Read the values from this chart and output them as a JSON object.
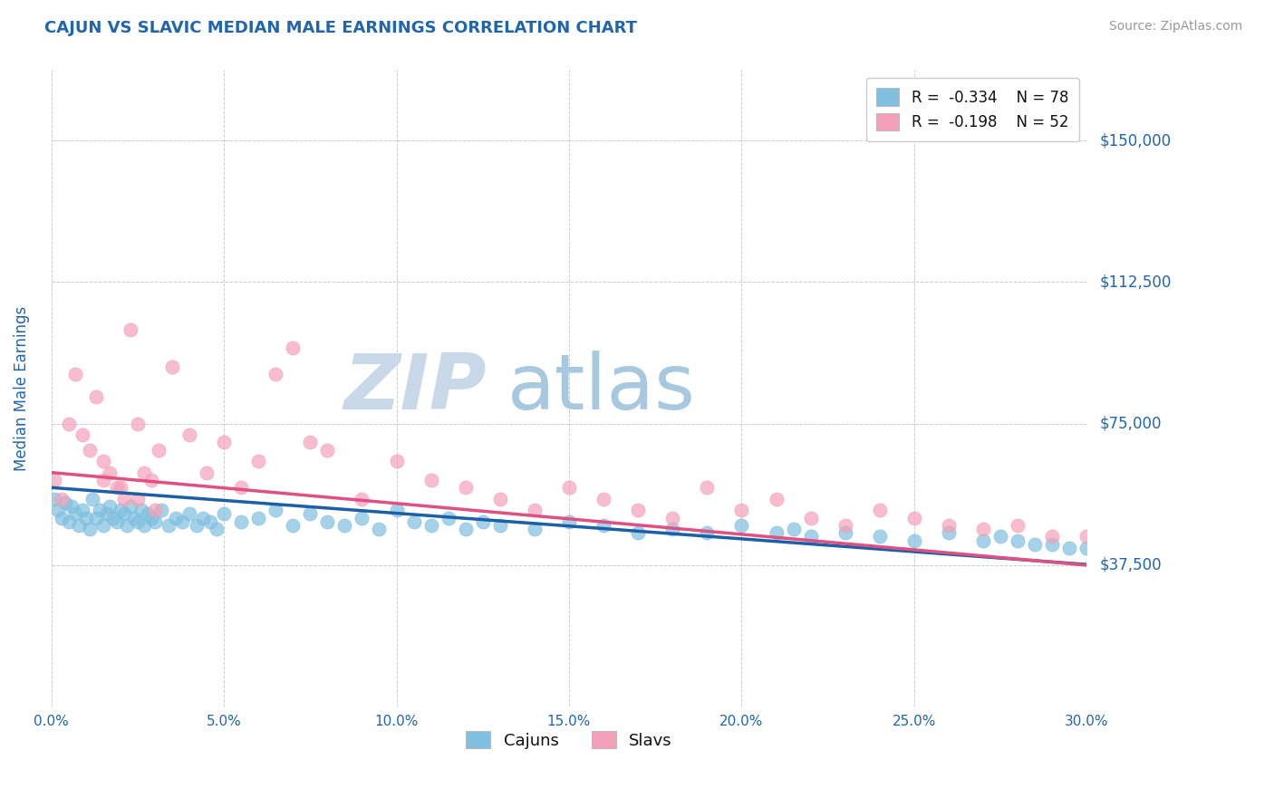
{
  "title": "CAJUN VS SLAVIC MEDIAN MALE EARNINGS CORRELATION CHART",
  "source": "Source: ZipAtlas.com",
  "ylabel": "Median Male Earnings",
  "xmin": 0.0,
  "xmax": 0.3,
  "ymin": 0,
  "ymax": 168750,
  "yticks": [
    0,
    37500,
    75000,
    112500,
    150000
  ],
  "ytick_labels": [
    "",
    "$37,500",
    "$75,000",
    "$112,500",
    "$150,000"
  ],
  "xtick_vals": [
    0.0,
    0.05,
    0.1,
    0.15,
    0.2,
    0.25,
    0.3
  ],
  "xtick_labels": [
    "0.0%",
    "5.0%",
    "10.0%",
    "15.0%",
    "20.0%",
    "25.0%",
    "30.0%"
  ],
  "cajuns_R": -0.334,
  "cajuns_N": 78,
  "slavs_R": -0.198,
  "slavs_N": 52,
  "cajun_color": "#7fbfdf",
  "slav_color": "#f4a0b8",
  "cajun_line_color": "#1a5fa8",
  "slav_line_color": "#e05080",
  "title_color": "#2166ac",
  "axis_label_color": "#2166ac",
  "source_color": "#999999",
  "watermark_ZIP": "ZIP",
  "watermark_atlas": "atlas",
  "watermark_ZIP_color": "#c8d8e8",
  "watermark_atlas_color": "#a8c8e0",
  "background_color": "#ffffff",
  "grid_color": "#cccccc",
  "cajun_line_intercept": 58000,
  "cajun_line_slope": -68000,
  "slav_line_intercept": 62000,
  "slav_line_slope": -82000,
  "cajuns_x": [
    0.001,
    0.002,
    0.003,
    0.004,
    0.005,
    0.006,
    0.007,
    0.008,
    0.009,
    0.01,
    0.011,
    0.012,
    0.013,
    0.014,
    0.015,
    0.016,
    0.017,
    0.018,
    0.019,
    0.02,
    0.021,
    0.022,
    0.023,
    0.024,
    0.025,
    0.026,
    0.027,
    0.028,
    0.029,
    0.03,
    0.032,
    0.034,
    0.036,
    0.038,
    0.04,
    0.042,
    0.044,
    0.046,
    0.048,
    0.05,
    0.055,
    0.06,
    0.065,
    0.07,
    0.075,
    0.08,
    0.085,
    0.09,
    0.095,
    0.1,
    0.105,
    0.11,
    0.115,
    0.12,
    0.125,
    0.13,
    0.14,
    0.15,
    0.16,
    0.17,
    0.18,
    0.19,
    0.2,
    0.21,
    0.215,
    0.22,
    0.23,
    0.24,
    0.25,
    0.26,
    0.27,
    0.275,
    0.28,
    0.285,
    0.29,
    0.295,
    0.3,
    0.305
  ],
  "cajuns_y": [
    55000,
    52000,
    50000,
    54000,
    49000,
    53000,
    51000,
    48000,
    52000,
    50000,
    47000,
    55000,
    50000,
    52000,
    48000,
    51000,
    53000,
    50000,
    49000,
    52000,
    51000,
    48000,
    53000,
    50000,
    49000,
    52000,
    48000,
    51000,
    50000,
    49000,
    52000,
    48000,
    50000,
    49000,
    51000,
    48000,
    50000,
    49000,
    47000,
    51000,
    49000,
    50000,
    52000,
    48000,
    51000,
    49000,
    48000,
    50000,
    47000,
    52000,
    49000,
    48000,
    50000,
    47000,
    49000,
    48000,
    47000,
    49000,
    48000,
    46000,
    47000,
    46000,
    48000,
    46000,
    47000,
    45000,
    46000,
    45000,
    44000,
    46000,
    44000,
    45000,
    44000,
    43000,
    43000,
    42000,
    42000,
    41000
  ],
  "slavs_x": [
    0.001,
    0.003,
    0.005,
    0.007,
    0.009,
    0.011,
    0.013,
    0.015,
    0.017,
    0.019,
    0.021,
    0.023,
    0.025,
    0.027,
    0.029,
    0.031,
    0.035,
    0.04,
    0.045,
    0.05,
    0.055,
    0.06,
    0.065,
    0.07,
    0.075,
    0.08,
    0.09,
    0.1,
    0.11,
    0.12,
    0.13,
    0.14,
    0.15,
    0.16,
    0.17,
    0.18,
    0.19,
    0.2,
    0.21,
    0.22,
    0.23,
    0.24,
    0.25,
    0.26,
    0.27,
    0.28,
    0.29,
    0.3,
    0.015,
    0.02,
    0.025,
    0.03
  ],
  "slavs_y": [
    60000,
    55000,
    75000,
    88000,
    72000,
    68000,
    82000,
    65000,
    62000,
    58000,
    55000,
    100000,
    75000,
    62000,
    60000,
    68000,
    90000,
    72000,
    62000,
    70000,
    58000,
    65000,
    88000,
    95000,
    70000,
    68000,
    55000,
    65000,
    60000,
    58000,
    55000,
    52000,
    58000,
    55000,
    52000,
    50000,
    58000,
    52000,
    55000,
    50000,
    48000,
    52000,
    50000,
    48000,
    47000,
    48000,
    45000,
    45000,
    60000,
    58000,
    55000,
    52000
  ]
}
